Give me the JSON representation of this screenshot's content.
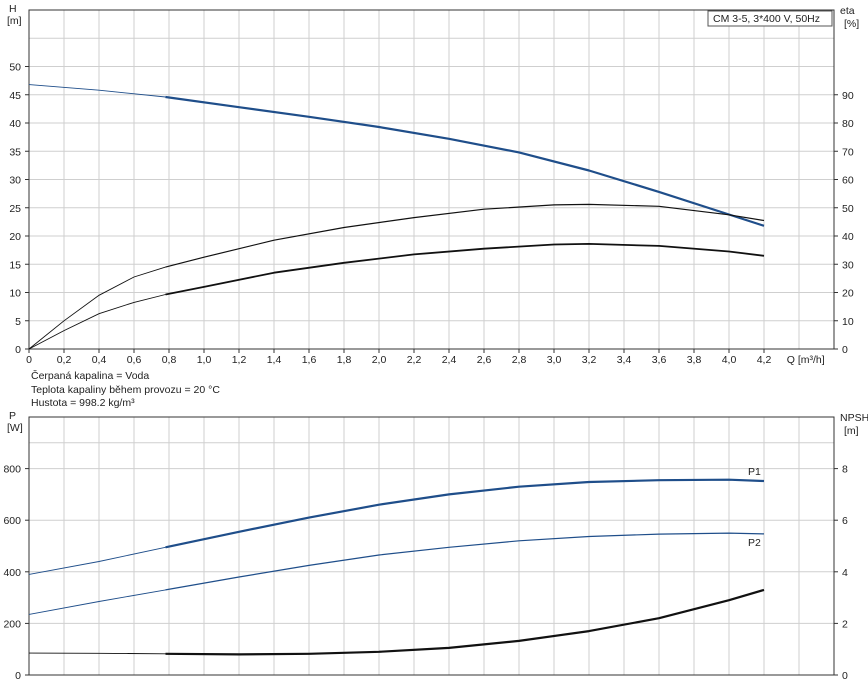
{
  "chart_data": [
    {
      "type": "line",
      "title": "CM 3-5, 3*400 V, 50Hz",
      "xlabel": "Q [m³/h]",
      "xlim": [
        0,
        4.6
      ],
      "x_ticks": [
        "0",
        "0,2",
        "0,4",
        "0,6",
        "0,8",
        "1,0",
        "1,2",
        "1,4",
        "1,6",
        "1,8",
        "2,0",
        "2,2",
        "2,4",
        "2,6",
        "2,8",
        "3,0",
        "3,2",
        "3,4",
        "3,6",
        "3,8",
        "4,0",
        "4,2"
      ],
      "y_left": {
        "label_top": "H",
        "label_unit": "[m]",
        "lim": [
          0,
          60
        ],
        "ticks": [
          0,
          5,
          10,
          15,
          20,
          25,
          30,
          35,
          40,
          45,
          50
        ]
      },
      "y_right": {
        "label_top": "eta",
        "label_unit": "[%]",
        "lim": [
          0,
          120
        ],
        "ticks": [
          0,
          10,
          20,
          30,
          40,
          50,
          60,
          70,
          80,
          90
        ]
      },
      "grid": true,
      "legend": "top-right",
      "series": [
        {
          "name": "",
          "axis": "left",
          "color": "#1f4e8a",
          "width": 2.2,
          "x": [
            0,
            0.4,
            0.78,
            1.2,
            1.6,
            2.0,
            2.4,
            2.8,
            3.2,
            3.6,
            4.0,
            4.2
          ],
          "y": [
            46.8,
            45.8,
            44.6,
            42.8,
            41.1,
            39.3,
            37.2,
            34.8,
            31.6,
            27.8,
            23.8,
            21.8
          ]
        },
        {
          "name": "",
          "axis": "right",
          "color": "#111111",
          "width": 1.2,
          "x": [
            0,
            0.2,
            0.4,
            0.6,
            0.78,
            1.0,
            1.4,
            1.8,
            2.2,
            2.6,
            3.0,
            3.2,
            3.6,
            4.0,
            4.2
          ],
          "y": [
            0,
            10,
            19,
            25.5,
            29,
            32.5,
            38.5,
            43,
            46.5,
            49.5,
            51,
            51.2,
            50.5,
            47.5,
            45.5
          ]
        },
        {
          "name": "",
          "axis": "right",
          "color": "#111111",
          "width": 1.8,
          "x": [
            0,
            0.2,
            0.4,
            0.6,
            0.78,
            1.0,
            1.4,
            1.8,
            2.2,
            2.6,
            3.0,
            3.2,
            3.6,
            4.0,
            4.2
          ],
          "y": [
            0,
            6.5,
            12.5,
            16.5,
            19.3,
            22,
            27,
            30.5,
            33.5,
            35.5,
            37,
            37.2,
            36.5,
            34.5,
            33
          ]
        }
      ]
    },
    {
      "type": "line",
      "xlim": [
        0,
        4.6
      ],
      "y_left": {
        "label_top": "P",
        "label_unit": "[W]",
        "lim": [
          0,
          1000
        ],
        "ticks": [
          0,
          200,
          400,
          600,
          800
        ]
      },
      "y_right": {
        "label_top": "NPSH",
        "label_unit": "[m]",
        "lim": [
          0,
          10
        ],
        "ticks": [
          0,
          2,
          4,
          6,
          8
        ]
      },
      "grid": true,
      "series": [
        {
          "name": "P1",
          "axis": "left",
          "color": "#1f4e8a",
          "width": 2.2,
          "x": [
            0,
            0.4,
            0.78,
            1.2,
            1.6,
            2.0,
            2.4,
            2.8,
            3.2,
            3.6,
            4.0,
            4.2
          ],
          "y": [
            390,
            440,
            495,
            555,
            610,
            660,
            700,
            730,
            748,
            755,
            757,
            752
          ]
        },
        {
          "name": "P2",
          "axis": "left",
          "color": "#1f4e8a",
          "width": 1.2,
          "x": [
            0,
            0.4,
            0.78,
            1.2,
            1.6,
            2.0,
            2.4,
            2.8,
            3.2,
            3.6,
            4.0,
            4.2
          ],
          "y": [
            235,
            285,
            330,
            380,
            425,
            465,
            495,
            520,
            537,
            546,
            550,
            547
          ]
        },
        {
          "name": "",
          "axis": "right",
          "color": "#111111",
          "width": 2.2,
          "x": [
            0,
            0.4,
            0.78,
            1.2,
            1.6,
            2.0,
            2.4,
            2.8,
            3.2,
            3.6,
            4.0,
            4.2
          ],
          "y": [
            0.85,
            0.84,
            0.82,
            0.8,
            0.82,
            0.9,
            1.05,
            1.32,
            1.7,
            2.2,
            2.9,
            3.3
          ]
        }
      ]
    }
  ],
  "fluid_info": [
    "Čerpaná kapalina = Voda",
    "Teplota kapaliny během provozu = 20 °C",
    "Hustota = 998.2 kg/m³"
  ]
}
